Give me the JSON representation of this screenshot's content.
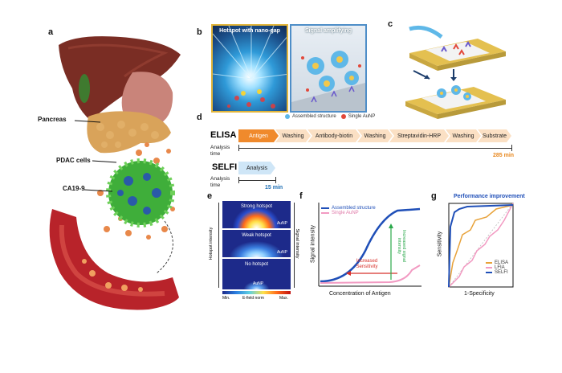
{
  "panels": {
    "a": {
      "label": "a",
      "pancreas": "Pancreas",
      "pdac": "PDAC cells",
      "ca199": "CA19-9"
    },
    "b": {
      "label": "b",
      "left_title": "Hotspot with nano-gap",
      "right_title": "Signal amplifying",
      "legend_assembled": "Assembled structure",
      "legend_single": "Single AuNP"
    },
    "c": {
      "label": "c"
    },
    "d": {
      "label": "d",
      "elisa": "ELISA",
      "selfi": "SELFI",
      "analysis_time": "Analysis time",
      "elisa_steps": [
        "Antigen",
        "Washing",
        "Antibody-biotin",
        "Washing",
        "Streptavidin-HRP",
        "Washing",
        "Substrate"
      ],
      "selfi_step": "Analysis",
      "elisa_time": "285 min",
      "selfi_time": "15 min",
      "colors": {
        "elisa_first": "#f08a2c",
        "elisa_rest": "#fbe0c4",
        "selfi": "#cfe6f7",
        "time_orange": "#e8881f",
        "time_blue": "#1f6fb4"
      }
    },
    "e": {
      "label": "e",
      "strong": "Strong hotspot",
      "weak": "Weak hotspot",
      "none": "No hotspot",
      "aunp": "AuNP",
      "y_left": "Hotspot intensity",
      "y_right": "Signal intensity",
      "cb_min": "Min.",
      "cb_mid": "E-field norm",
      "cb_max": "Max."
    },
    "f": {
      "label": "f",
      "legend_assembled": "Assembled structure",
      "legend_single": "Single AuNP",
      "ylabel": "Signal intensity",
      "xlabel": "Concentration of Antigen",
      "arrow_red": "Increased Sensitivity",
      "arrow_green": "Increased signal intensity"
    },
    "g": {
      "label": "g",
      "title": "Performance improvement",
      "ylabel": "Sensitivity",
      "xlabel": "1-Specificity",
      "legend": [
        {
          "name": "ELISA",
          "color": "#e8a23a"
        },
        {
          "name": "LFIA",
          "color": "#f29ac2"
        },
        {
          "name": "SELFI",
          "color": "#1f4fb8"
        }
      ]
    }
  }
}
